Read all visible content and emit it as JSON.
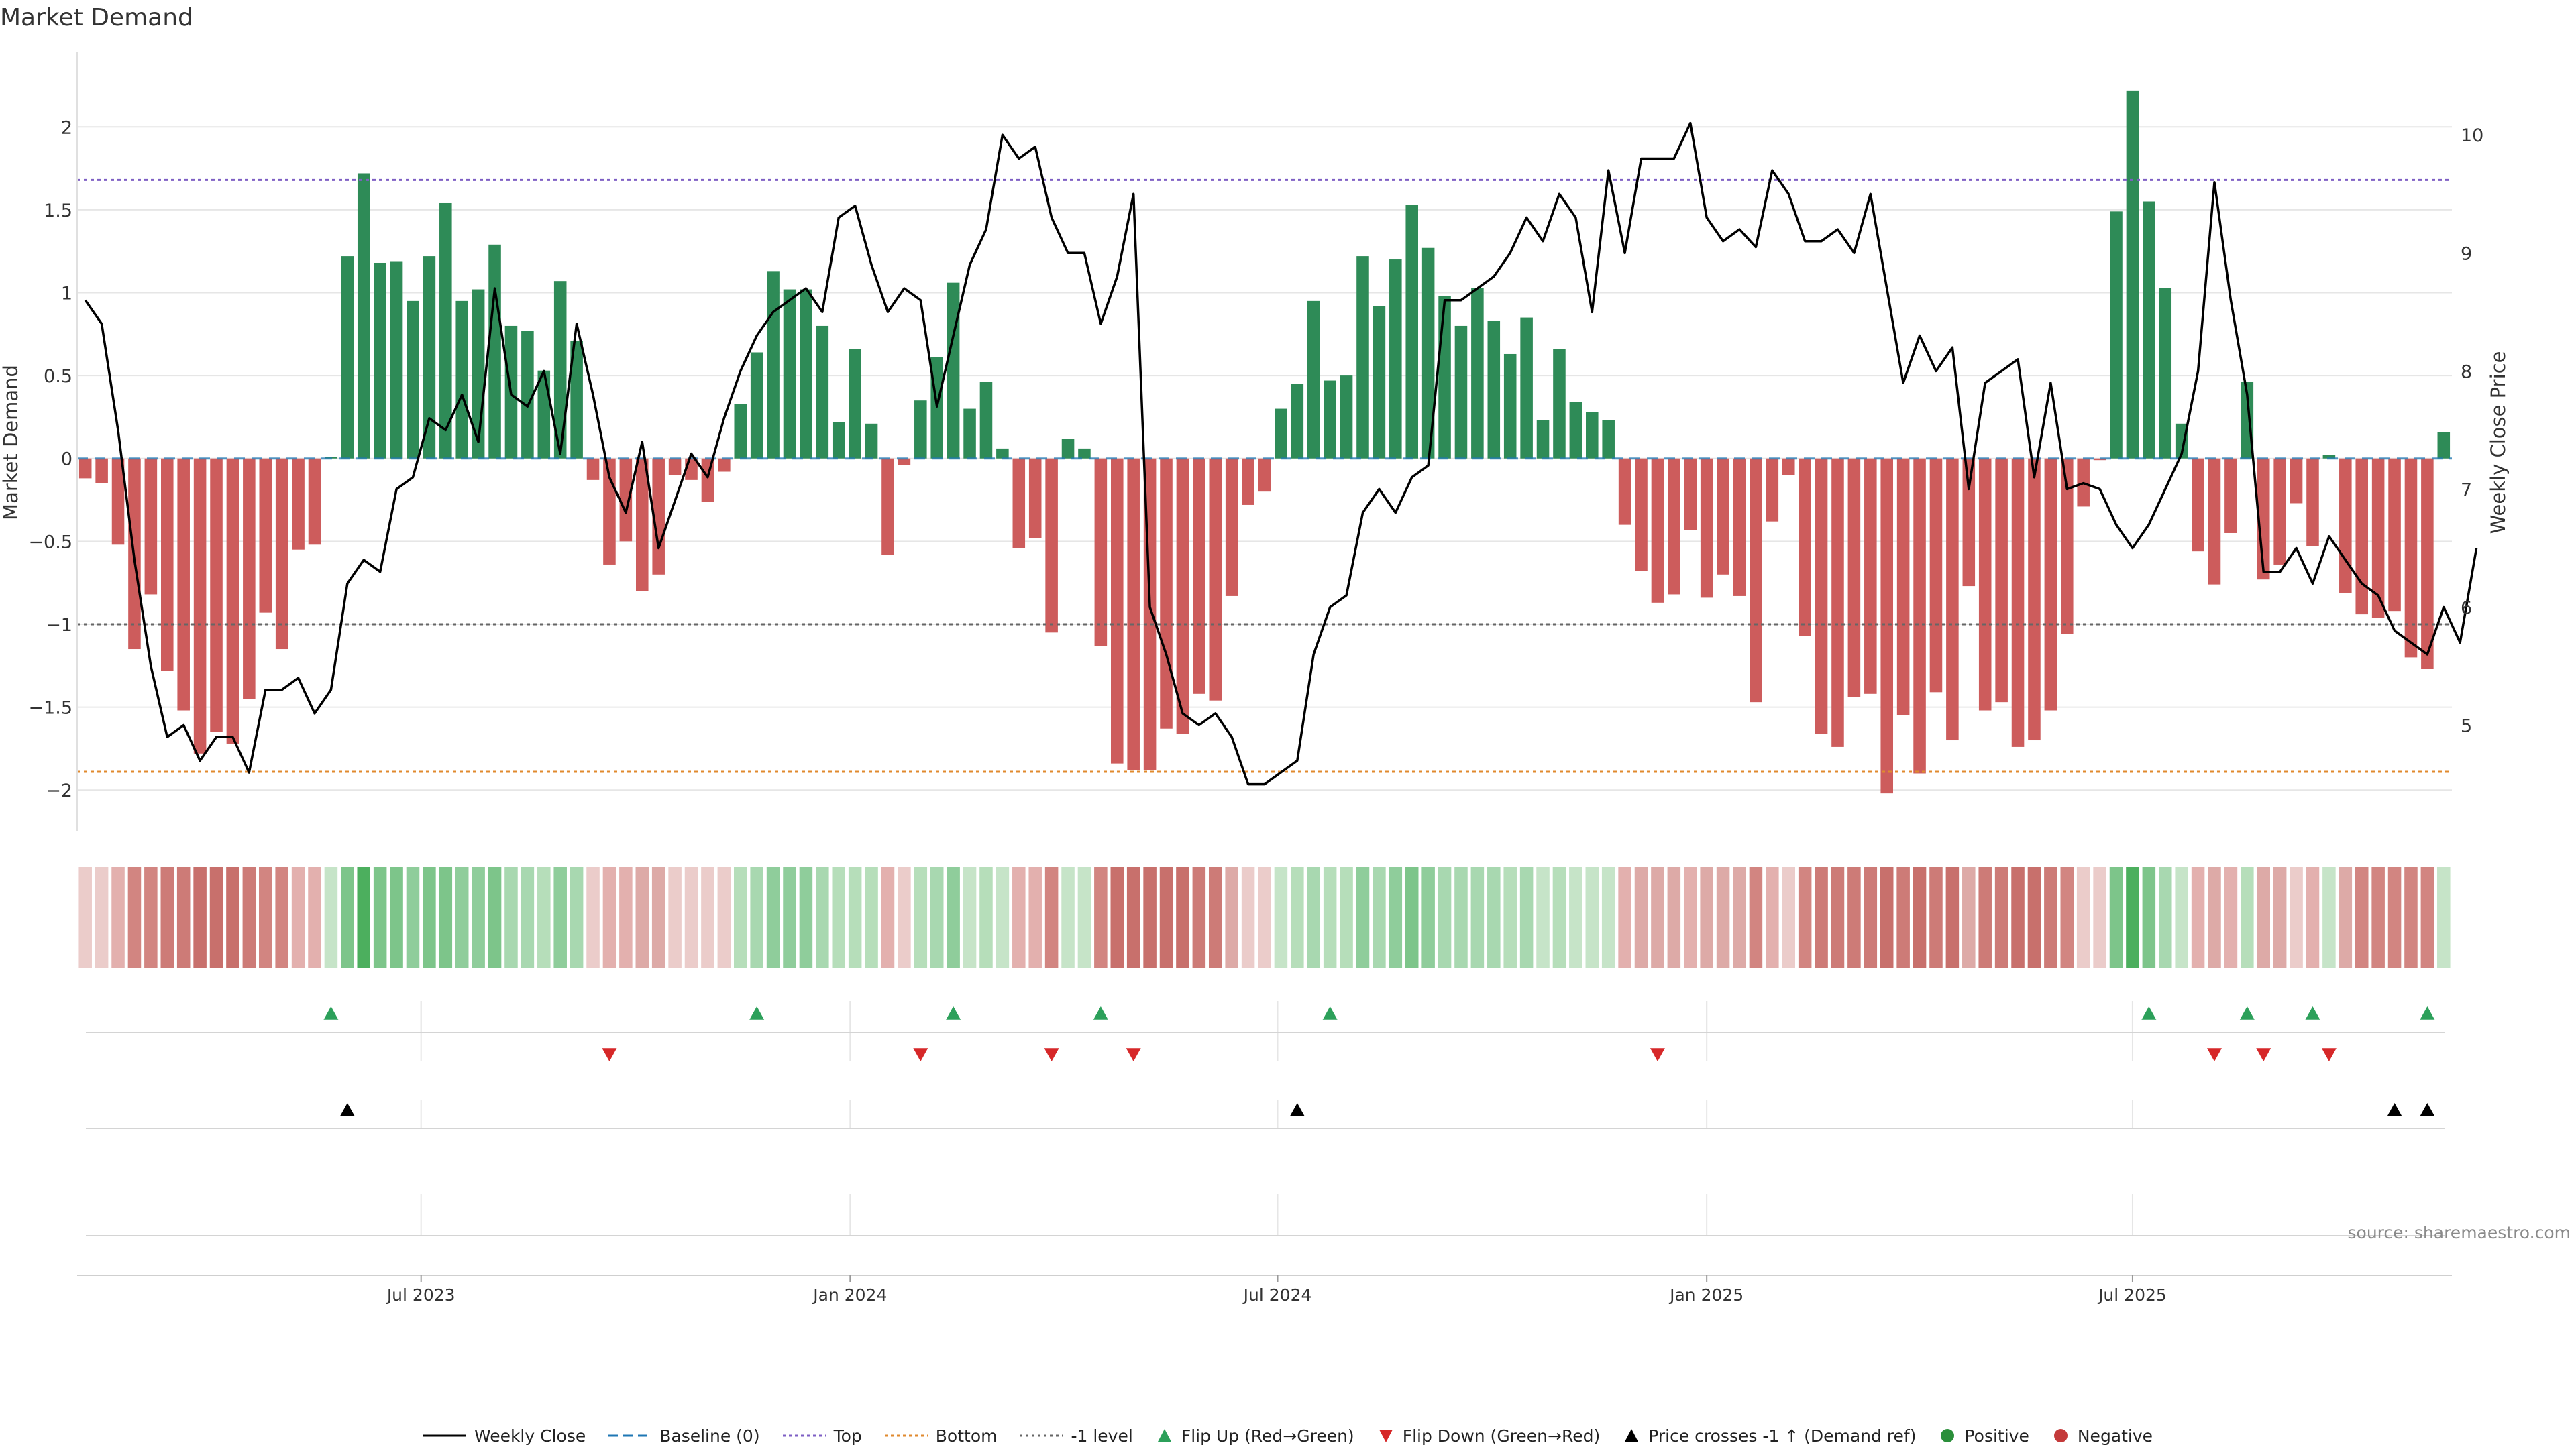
{
  "chart_data": {
    "type": "bar",
    "title": "Market Demand",
    "ylabel": "Market Demand",
    "y2label": "Weekly Close Price",
    "ylim": [
      -2.25,
      2.45
    ],
    "y2lim": [
      4.1,
      10.7
    ],
    "yticks": [
      2,
      1.5,
      1,
      0.5,
      0,
      -0.5,
      -1,
      -1.5,
      -2
    ],
    "ytick_labels": [
      "2",
      "1.5",
      "1",
      "0.5",
      "0",
      "−0.5",
      "−1",
      "−1.5",
      "−2"
    ],
    "y2ticks": [
      10,
      9,
      8,
      7,
      6,
      5
    ],
    "y2tick_labels": [
      "10",
      "9",
      "8",
      "7",
      "6",
      "5"
    ],
    "x_tick_labels": [
      "Jul 2023",
      "Jan 2024",
      "Jul 2024",
      "Jan 2025",
      "Jul 2025"
    ],
    "x_tick_weeks": [
      20.5,
      46.7,
      72.8,
      99.0,
      125.0
    ],
    "reference_lines": {
      "baseline": 0,
      "top": 1.68,
      "bottom": -1.89,
      "minus_one": -1.0
    },
    "demand": [
      -0.12,
      -0.15,
      -0.52,
      -1.15,
      -0.82,
      -1.28,
      -1.52,
      -1.78,
      -1.65,
      -1.72,
      -1.45,
      -0.93,
      -1.15,
      -0.55,
      -0.52,
      0.01,
      1.22,
      1.72,
      1.18,
      1.19,
      0.95,
      1.22,
      1.54,
      0.95,
      1.02,
      1.29,
      0.8,
      0.77,
      0.53,
      1.07,
      0.71,
      -0.13,
      -0.64,
      -0.5,
      -0.8,
      -0.7,
      -0.1,
      -0.13,
      -0.26,
      -0.08,
      0.33,
      0.64,
      1.13,
      1.02,
      1.02,
      0.8,
      0.22,
      0.66,
      0.21,
      -0.58,
      -0.04,
      0.35,
      0.61,
      1.06,
      0.3,
      0.46,
      0.06,
      -0.54,
      -0.48,
      -1.05,
      0.12,
      0.06,
      -1.13,
      -1.84,
      -1.88,
      -1.88,
      -1.63,
      -1.66,
      -1.42,
      -1.46,
      -0.83,
      -0.28,
      -0.2,
      0.3,
      0.45,
      0.95,
      0.47,
      0.5,
      1.22,
      0.92,
      1.2,
      1.53,
      1.27,
      0.98,
      0.8,
      1.03,
      0.83,
      0.63,
      0.85,
      0.23,
      0.66,
      0.34,
      0.28,
      0.23,
      -0.4,
      -0.68,
      -0.87,
      -0.82,
      -0.43,
      -0.84,
      -0.7,
      -0.83,
      -1.47,
      -0.38,
      -0.1,
      -1.07,
      -1.66,
      -1.74,
      -1.44,
      -1.42,
      -2.02,
      -1.55,
      -1.9,
      -1.41,
      -1.7,
      -0.77,
      -1.52,
      -1.47,
      -1.74,
      -1.7,
      -1.52,
      -1.06,
      -0.29,
      -0.01,
      1.49,
      2.22,
      1.55,
      1.03,
      0.21,
      -0.56,
      -0.76,
      -0.45,
      0.46,
      -0.73,
      -0.64,
      -0.27,
      -0.53,
      0.02,
      -0.81,
      -0.94,
      -0.96,
      -0.92,
      -1.2,
      -1.27,
      0.16
    ],
    "strip_colors": [
      "#ebccca",
      "#ebccca",
      "#e3b0ae",
      "#d28581",
      "#d28581",
      "#cd7b77",
      "#cd7b77",
      "#c8706c",
      "#c8706c",
      "#c8706c",
      "#cd7b77",
      "#d28581",
      "#d28581",
      "#e3b0ae",
      "#e3b0ae",
      "#c6e4c8",
      "#7dc58a",
      "#4caf5e",
      "#7dc58a",
      "#7dc58a",
      "#8fcd9b",
      "#7dc58a",
      "#7dc58a",
      "#8fcd9b",
      "#8fcd9b",
      "#7dc58a",
      "#a8d8b0",
      "#a8d8b0",
      "#b6deba",
      "#8fcd9b",
      "#a8d8b0",
      "#ebccca",
      "#e3b0ae",
      "#e3b0ae",
      "#ddaaa7",
      "#ddaaa7",
      "#ebccca",
      "#ebccca",
      "#ebccca",
      "#ebccca",
      "#b6deba",
      "#a8d8b0",
      "#8fcd9b",
      "#8fcd9b",
      "#8fcd9b",
      "#a8d8b0",
      "#b6deba",
      "#b6deba",
      "#b6deba",
      "#e3b0ae",
      "#ebccca",
      "#b6deba",
      "#a8d8b0",
      "#8fcd9b",
      "#c6e4c8",
      "#b6deba",
      "#c6e4c8",
      "#e3b0ae",
      "#e3b0ae",
      "#d28581",
      "#c6e4c8",
      "#c6e4c8",
      "#d28581",
      "#c8706c",
      "#c8706c",
      "#c8706c",
      "#c8706c",
      "#c8706c",
      "#cd7b77",
      "#cd7b77",
      "#ddaaa7",
      "#ebccca",
      "#ebccca",
      "#c6e4c8",
      "#b6deba",
      "#a8d8b0",
      "#b6deba",
      "#b6deba",
      "#8fcd9b",
      "#a8d8b0",
      "#8fcd9b",
      "#7dc58a",
      "#8fcd9b",
      "#a8d8b0",
      "#a8d8b0",
      "#a8d8b0",
      "#a8d8b0",
      "#b6deba",
      "#a8d8b0",
      "#c6e4c8",
      "#b6deba",
      "#c6e4c8",
      "#c6e4c8",
      "#c6e4c8",
      "#e3b0ae",
      "#ddaaa7",
      "#ddaaa7",
      "#ddaaa7",
      "#e3b0ae",
      "#ddaaa7",
      "#ddaaa7",
      "#ddaaa7",
      "#d28581",
      "#e3b0ae",
      "#ebccca",
      "#d28581",
      "#cd7b77",
      "#cd7b77",
      "#cd7b77",
      "#cd7b77",
      "#c8706c",
      "#cd7b77",
      "#c8706c",
      "#cd7b77",
      "#c8706c",
      "#ddaaa7",
      "#cd7b77",
      "#cd7b77",
      "#c8706c",
      "#c8706c",
      "#cd7b77",
      "#d28581",
      "#ebccca",
      "#ebccca",
      "#7dc58a",
      "#4caf5e",
      "#7dc58a",
      "#a8d8b0",
      "#c6e4c8",
      "#e3b0ae",
      "#ddaaa7",
      "#e3b0ae",
      "#b6deba",
      "#ddaaa7",
      "#ddaaa7",
      "#ebccca",
      "#e3b0ae",
      "#c6e4c8",
      "#ddaaa7",
      "#d28581",
      "#d28581",
      "#d28581",
      "#d28581",
      "#d28581",
      "#c6e4c8"
    ],
    "price": [
      8.6,
      8.4,
      7.5,
      6.4,
      5.5,
      4.9,
      5.0,
      4.7,
      4.9,
      4.9,
      4.6,
      5.3,
      5.3,
      5.4,
      5.1,
      5.3,
      6.2,
      6.4,
      6.3,
      7.0,
      7.1,
      7.6,
      7.5,
      7.8,
      7.4,
      8.7,
      7.8,
      7.7,
      8.0,
      7.3,
      8.4,
      7.8,
      7.1,
      6.8,
      7.4,
      6.5,
      6.9,
      7.3,
      7.1,
      7.6,
      8.0,
      8.3,
      8.5,
      8.6,
      8.7,
      8.5,
      9.3,
      9.4,
      8.9,
      8.5,
      8.7,
      8.6,
      7.7,
      8.3,
      8.9,
      9.2,
      10.0,
      9.8,
      9.9,
      9.3,
      9.0,
      9.0,
      8.4,
      8.8,
      9.5,
      6.0,
      5.6,
      5.1,
      5.0,
      5.1,
      4.9,
      4.5,
      4.5,
      4.6,
      4.7,
      5.6,
      6.0,
      6.1,
      6.8,
      7.0,
      6.8,
      7.1,
      7.2,
      8.6,
      8.6,
      8.7,
      8.8,
      9.0,
      9.3,
      9.1,
      9.5,
      9.3,
      8.5,
      9.7,
      9.0,
      9.8,
      9.8,
      9.8,
      10.1,
      9.3,
      9.1,
      9.2,
      9.05,
      9.7,
      9.5,
      9.1,
      9.1,
      9.2,
      9.0,
      9.5,
      8.7,
      7.9,
      8.3,
      8.0,
      8.2,
      7.0,
      7.9,
      8.0,
      8.1,
      7.1,
      7.9,
      7.0,
      7.05,
      7.0,
      6.7,
      6.5,
      6.7,
      7.0,
      7.3,
      8.0,
      9.6,
      8.6,
      7.8,
      6.3,
      6.3,
      6.5,
      6.2,
      6.6,
      6.4,
      6.2,
      6.1,
      5.8,
      5.7,
      5.6,
      6.0,
      5.7,
      6.5
    ],
    "flip_up_weeks": [
      15,
      41,
      53,
      62,
      76,
      126,
      132,
      136,
      143
    ],
    "flip_down_weeks": [
      32,
      51,
      59,
      64,
      96,
      130,
      133,
      137
    ],
    "price_cross_weeks": [
      16,
      74,
      141,
      143
    ],
    "source": "source: sharemaestro.com",
    "legend": [
      {
        "label": "Weekly Close",
        "kind": "solid-line",
        "color": "#000000"
      },
      {
        "label": "Baseline (0)",
        "kind": "dash-line",
        "color": "#1f77b4"
      },
      {
        "label": "Top",
        "kind": "dot-line",
        "color": "#7e5fc4"
      },
      {
        "label": "Bottom",
        "kind": "dot-line",
        "color": "#e08a2e"
      },
      {
        "label": "-1 level",
        "kind": "dot-line",
        "color": "#666666"
      },
      {
        "label": "Flip Up (Red→Green)",
        "kind": "tri-up",
        "color": "#2ca05a"
      },
      {
        "label": "Flip Down (Green→Red)",
        "kind": "tri-down",
        "color": "#d62728"
      },
      {
        "label": "Price crosses -1 ↑ (Demand ref)",
        "kind": "tri-up",
        "color": "#000000"
      },
      {
        "label": "Positive",
        "kind": "dot",
        "color": "#2a8f3a"
      },
      {
        "label": "Negative",
        "kind": "dot",
        "color": "#c43a3a"
      }
    ],
    "colors": {
      "positive_bar": "#2e8b57",
      "negative_bar": "#cd5c5c",
      "grid": "#e6e6e6"
    }
  }
}
